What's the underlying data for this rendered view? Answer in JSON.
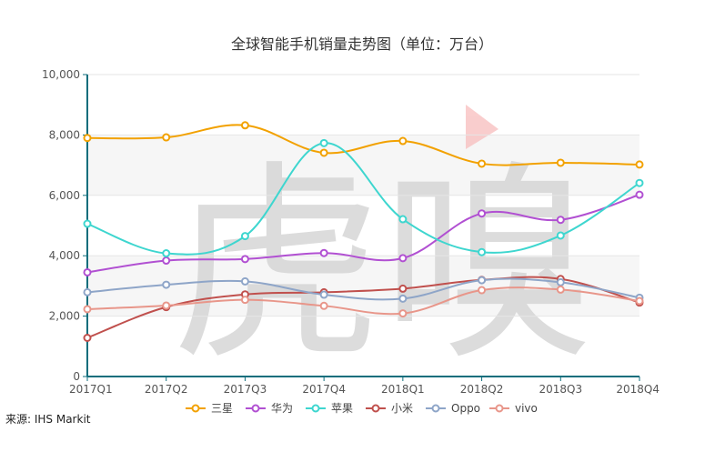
{
  "chart_data": {
    "type": "line",
    "title": "全球智能手机销量走势图（单位：万台）",
    "categories": [
      "2017Q1",
      "2017Q2",
      "2017Q3",
      "2017Q4",
      "2018Q1",
      "2018Q2",
      "2018Q3",
      "2018Q4"
    ],
    "ylim": [
      0,
      10000
    ],
    "yticks": [
      "0",
      "2,000",
      "4,000",
      "6,000",
      "8,000",
      "10,000"
    ],
    "ytick_values": [
      0,
      2000,
      4000,
      6000,
      8000,
      10000
    ],
    "xlabel": "",
    "ylabel": "",
    "grid": "horizontal",
    "legend_position": "bottom",
    "series": [
      {
        "name": "三星",
        "color": "#f2a100",
        "values": [
          7900,
          7920,
          8320,
          7410,
          7800,
          7050,
          7080,
          7020
        ]
      },
      {
        "name": "华为",
        "color": "#b150d2",
        "values": [
          3450,
          3840,
          3890,
          4090,
          3920,
          5400,
          5190,
          6020
        ]
      },
      {
        "name": "苹果",
        "color": "#3ed6cf",
        "values": [
          5060,
          4080,
          4650,
          7730,
          5210,
          4120,
          4670,
          6410
        ]
      },
      {
        "name": "小米",
        "color": "#c0504d",
        "values": [
          1280,
          2300,
          2720,
          2790,
          2910,
          3200,
          3230,
          2450
        ]
      },
      {
        "name": "Oppo",
        "color": "#8ea5c8",
        "values": [
          2790,
          3040,
          3150,
          2710,
          2580,
          3190,
          3120,
          2610
        ]
      },
      {
        "name": "vivo",
        "color": "#e8968a",
        "values": [
          2230,
          2350,
          2540,
          2340,
          2090,
          2860,
          2880,
          2500
        ]
      }
    ]
  },
  "watermark": {
    "text": "虎嗅",
    "color": "#cfcfcf",
    "accent": "#f6b3b3"
  },
  "source_text": "来源: IHS Markit"
}
